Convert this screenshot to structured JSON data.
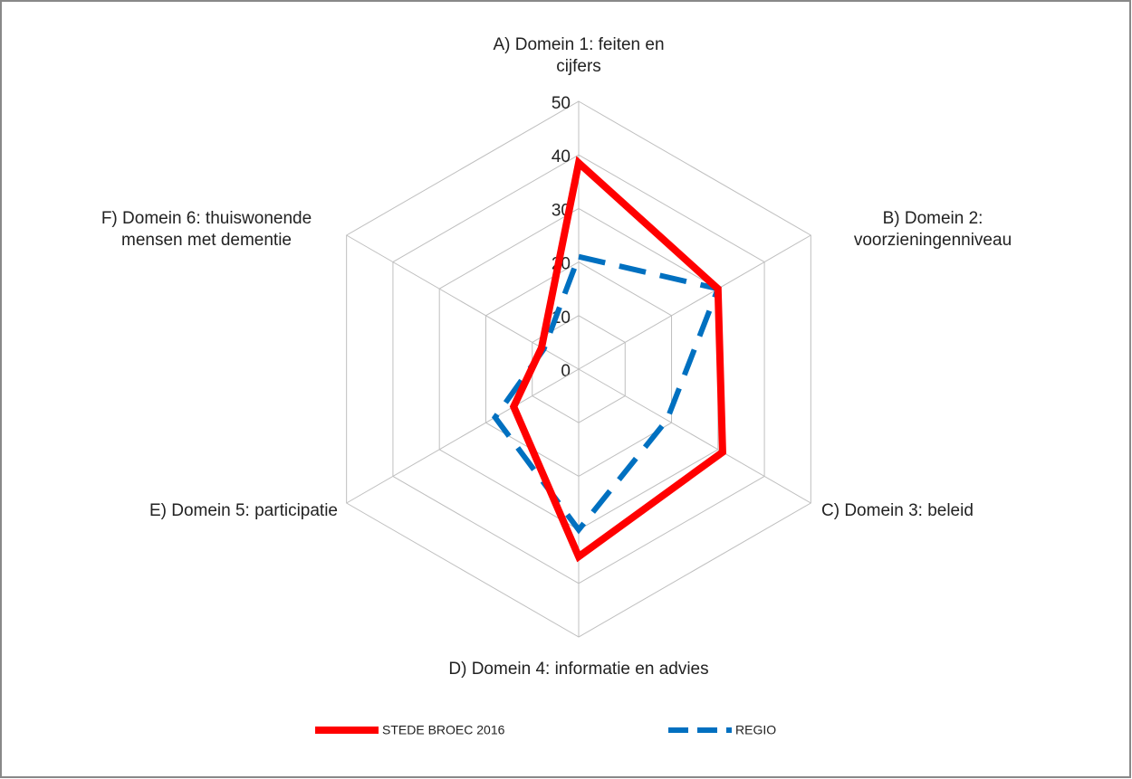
{
  "chart_data": {
    "type": "radar",
    "categories": [
      "A) Domein 1: feiten en cijfers",
      "B) Domein 2: voorzieningenniveau",
      "C) Domein 3: beleid",
      "D) Domein 4: informatie en advies",
      "E) Domein 5: participatie",
      "F) Domein 6: thuiswonende mensen met dementie"
    ],
    "series": [
      {
        "name": "STEDE BROEC 2016",
        "color": "#ff0000",
        "dash": "solid",
        "values": [
          38.5,
          30,
          31,
          35,
          14,
          8
        ]
      },
      {
        "name": "REGIO",
        "color": "#0070c0",
        "dash": "dashed",
        "values": [
          21,
          30,
          19,
          30,
          18,
          7.5
        ]
      }
    ],
    "ylim": [
      0,
      50
    ],
    "yticks": [
      0,
      10,
      20,
      30,
      40,
      50
    ],
    "grid": true,
    "legend": "bottom"
  }
}
